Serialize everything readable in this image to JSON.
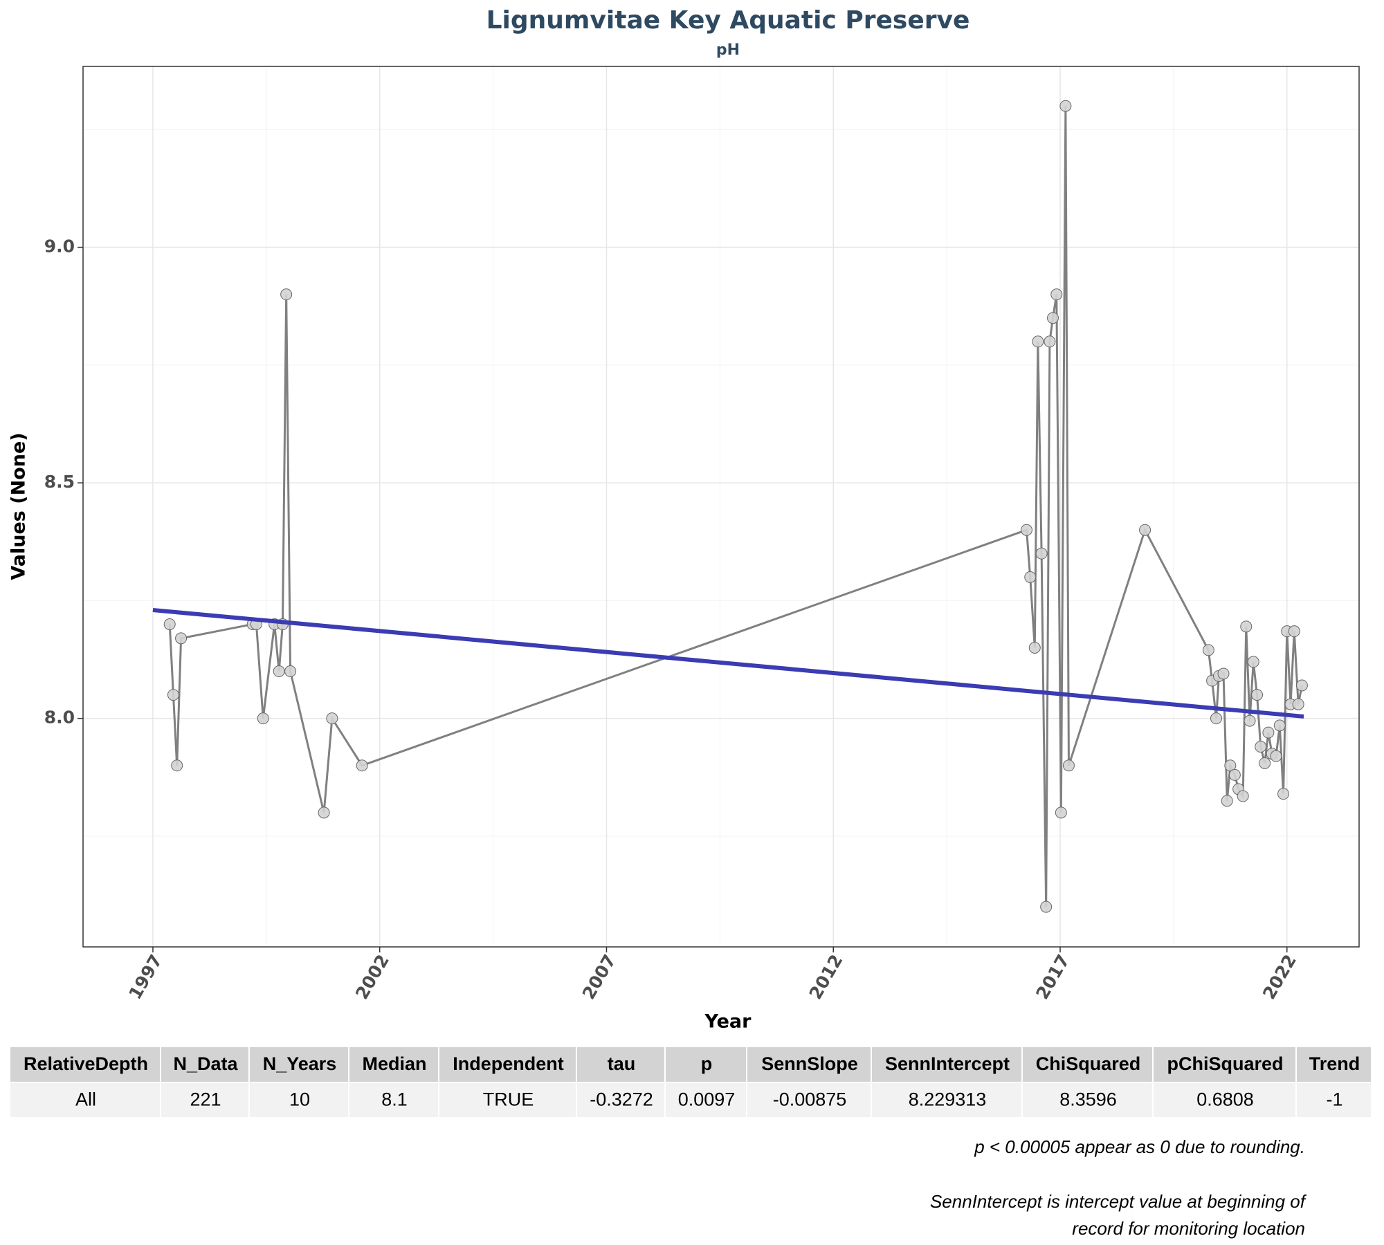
{
  "chart_data": {
    "type": "line",
    "title": "Lignumvitae Key Aquatic Preserve",
    "subtitle": "pH",
    "x_label": "Year",
    "y_label": "Values (None)",
    "series": [
      {
        "name": "pH",
        "color": "#808080",
        "marker_color": "#d3d3d3",
        "x": [
          1997.37,
          1997.45,
          1997.53,
          1997.62,
          1999.2,
          1999.28,
          1999.43,
          1999.68,
          1999.78,
          1999.86,
          1999.94,
          2000.03,
          2000.77,
          2000.95,
          2001.61,
          2016.26,
          2016.34,
          2016.44,
          2016.51,
          2016.59,
          2016.69,
          2016.77,
          2016.84,
          2016.92,
          2017.02,
          2017.12,
          2017.19,
          2018.87,
          2020.27,
          2020.35,
          2020.44,
          2020.5,
          2020.6,
          2020.68,
          2020.75,
          2020.85,
          2020.93,
          2021.03,
          2021.1,
          2021.18,
          2021.26,
          2021.34,
          2021.42,
          2021.51,
          2021.59,
          2021.67,
          2021.76,
          2021.84,
          2021.92,
          2022.0,
          2022.08,
          2022.16,
          2022.25,
          2022.33
        ],
        "values": [
          8.2,
          8.05,
          7.9,
          8.17,
          8.2,
          8.2,
          8.0,
          8.2,
          8.1,
          8.2,
          8.9,
          8.1,
          7.8,
          8.0,
          7.9,
          8.4,
          8.3,
          8.15,
          8.8,
          8.35,
          7.6,
          8.8,
          8.85,
          8.9,
          7.8,
          9.3,
          7.9,
          8.4,
          8.145,
          8.08,
          8.0,
          8.09,
          8.095,
          7.825,
          7.9,
          7.88,
          7.85,
          7.835,
          8.195,
          7.995,
          8.12,
          8.05,
          7.94,
          7.905,
          7.97,
          7.925,
          7.92,
          7.985,
          7.84,
          8.185,
          8.03,
          8.185,
          8.03,
          8.07
        ]
      },
      {
        "name": "Trend",
        "color": "#3b3bb3",
        "x": [
          1997.0,
          2022.37
        ],
        "values": [
          8.23,
          8.004
        ]
      }
    ],
    "xlim": [
      1995.46,
      2023.59
    ],
    "ylim": [
      7.515,
      9.384
    ],
    "xticks": [
      1997,
      2002,
      2007,
      2012,
      2017,
      2022
    ],
    "yticks": [
      {
        "value": 8.0,
        "label": "8.0"
      },
      {
        "value": 8.5,
        "label": "8.5"
      },
      {
        "value": 9.0,
        "label": "9.0"
      }
    ],
    "minor_xticks": [
      1999.5,
      2004.5,
      2009.5,
      2014.5,
      2019.5
    ],
    "minor_yticks": [
      7.75,
      8.25,
      8.75,
      9.25
    ],
    "grid": true
  },
  "table": {
    "header": [
      "RelativeDepth",
      "N_Data",
      "N_Years",
      "Median",
      "Independent",
      "tau",
      "p",
      "SennSlope",
      "SennIntercept",
      "ChiSquared",
      "pChiSquared",
      "Trend"
    ],
    "rows": [
      [
        "All",
        "221",
        "10",
        "8.1",
        "TRUE",
        "-0.3272",
        "0.0097",
        "-0.00875",
        "8.229313",
        "8.3596",
        "0.6808",
        "-1"
      ]
    ]
  },
  "notes": [
    "p < 0.00005 appear as 0 due to rounding.",
    "SennIntercept is intercept value at beginning of",
    "record for monitoring location"
  ]
}
